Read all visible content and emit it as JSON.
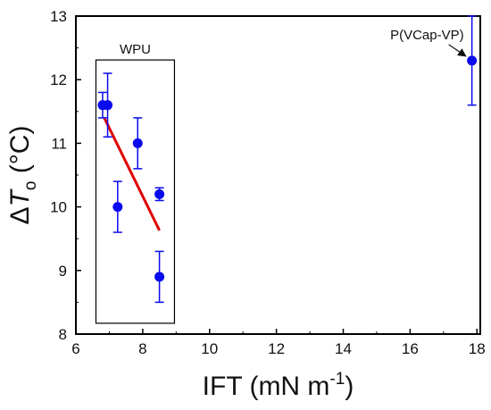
{
  "chart_data": {
    "type": "scatter",
    "xlabel": "IFT (mN m",
    "xlabel_superscript": "-1",
    "xlabel_suffix": ")",
    "ylabel_delta": "Δ",
    "ylabel_symbol": "T",
    "ylabel_subscript": "o",
    "ylabel_suffix": " (°C)",
    "xlim": [
      6,
      18.1
    ],
    "ylim": [
      8,
      13
    ],
    "xticks": [
      "6",
      "8",
      "10",
      "12",
      "14",
      "16",
      "18"
    ],
    "yticks": [
      "8",
      "9",
      "10",
      "11",
      "12",
      "13"
    ],
    "grid": false,
    "points": [
      {
        "x": 6.8,
        "y": 11.6,
        "err": 0.2
      },
      {
        "x": 6.95,
        "y": 11.6,
        "err": 0.5
      },
      {
        "x": 7.25,
        "y": 10.0,
        "err": 0.4
      },
      {
        "x": 7.85,
        "y": 11.0,
        "err": 0.4
      },
      {
        "x": 8.5,
        "y": 10.2,
        "err": 0.1
      },
      {
        "x": 8.5,
        "y": 8.9,
        "err": 0.4
      },
      {
        "x": 17.85,
        "y": 12.3,
        "err": 0.7
      }
    ],
    "fit_line": {
      "x": [
        6.85,
        8.5
      ],
      "y": [
        11.4,
        9.63
      ],
      "color": "#e00000"
    },
    "marker_color": "#0a0aee",
    "group_box": {
      "label": "WPU",
      "x": [
        6.6,
        8.95
      ],
      "y": [
        8.17,
        12.31
      ]
    },
    "annotations": [
      {
        "text": "P(VCap-VP)",
        "arrow_to": {
          "x": 17.85,
          "y": 12.3
        }
      }
    ]
  }
}
